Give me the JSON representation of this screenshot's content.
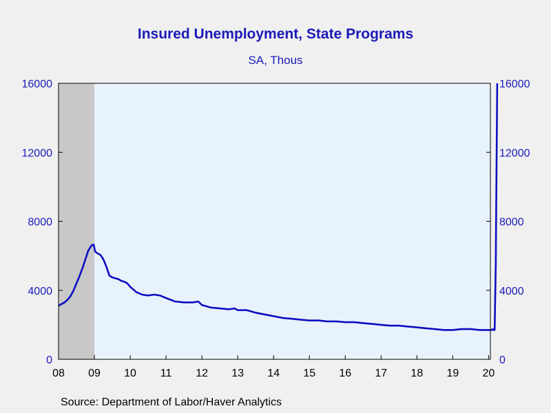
{
  "chart_data": {
    "type": "line",
    "title": "Insured Unemployment, State Programs",
    "subtitle": "SA, Thous",
    "source": "Source:  Department of Labor/Haver Analytics",
    "xlim": [
      2008.0,
      2020.05
    ],
    "ylim": [
      0,
      16000
    ],
    "x_ticks": [
      {
        "value": 2008,
        "label": "08"
      },
      {
        "value": 2009,
        "label": "09"
      },
      {
        "value": 2010,
        "label": "10"
      },
      {
        "value": 2011,
        "label": "11"
      },
      {
        "value": 2012,
        "label": "12"
      },
      {
        "value": 2013,
        "label": "13"
      },
      {
        "value": 2014,
        "label": "14"
      },
      {
        "value": 2015,
        "label": "15"
      },
      {
        "value": 2016,
        "label": "16"
      },
      {
        "value": 2017,
        "label": "17"
      },
      {
        "value": 2018,
        "label": "18"
      },
      {
        "value": 2019,
        "label": "19"
      },
      {
        "value": 2020,
        "label": "20"
      }
    ],
    "y_ticks_left": [
      {
        "value": 0,
        "label": "0"
      },
      {
        "value": 4000,
        "label": "4000"
      },
      {
        "value": 8000,
        "label": "8000"
      },
      {
        "value": 12000,
        "label": "12000"
      },
      {
        "value": 16000,
        "label": "16000"
      }
    ],
    "y_ticks_right": [
      {
        "value": 0,
        "label": "0"
      },
      {
        "value": 4000,
        "label": "4000"
      },
      {
        "value": 8000,
        "label": "8000"
      },
      {
        "value": 12000,
        "label": "12000"
      },
      {
        "value": 16000,
        "label": "16000"
      }
    ],
    "recession_shading": [
      [
        2008.0,
        2009.0
      ]
    ],
    "grid": false,
    "colors": {
      "line": "#0d0dbf",
      "axis_text": "#1a1ab8",
      "plot_bg": "#e8f2fc",
      "recession": "#c8c8c8",
      "page_bg": "#f0f0f0"
    },
    "series": [
      {
        "x": [
          2008.0,
          2008.08,
          2008.17,
          2008.25,
          2008.33,
          2008.42,
          2008.5,
          2008.58,
          2008.67,
          2008.75,
          2008.83,
          2008.92,
          2008.98,
          2009.02,
          2009.08,
          2009.17,
          2009.25,
          2009.33,
          2009.42,
          2009.5,
          2009.58,
          2009.67,
          2009.75,
          2009.83,
          2009.92,
          2010.0,
          2010.17,
          2010.33,
          2010.5,
          2010.67,
          2010.83,
          2011.0,
          2011.25,
          2011.5,
          2011.75,
          2011.9,
          2012.0,
          2012.25,
          2012.5,
          2012.75,
          2012.92,
          2013.0,
          2013.25,
          2013.5,
          2013.75,
          2014.0,
          2014.25,
          2014.5,
          2014.75,
          2015.0,
          2015.25,
          2015.5,
          2015.75,
          2016.0,
          2016.25,
          2016.5,
          2016.75,
          2017.0,
          2017.25,
          2017.5,
          2017.75,
          2018.0,
          2018.25,
          2018.5,
          2018.75,
          2019.0,
          2019.25,
          2019.5,
          2019.75,
          2020.0,
          2020.08,
          2020.12,
          2020.14,
          2020.17,
          2020.2,
          2020.24
        ],
        "values": [
          3100,
          3200,
          3300,
          3450,
          3650,
          4000,
          4400,
          4800,
          5300,
          5800,
          6300,
          6600,
          6650,
          6250,
          6150,
          6050,
          5800,
          5400,
          4850,
          4750,
          4700,
          4650,
          4550,
          4500,
          4400,
          4200,
          3900,
          3750,
          3700,
          3750,
          3700,
          3550,
          3350,
          3300,
          3300,
          3350,
          3150,
          3000,
          2950,
          2900,
          2950,
          2850,
          2850,
          2700,
          2600,
          2500,
          2400,
          2350,
          2300,
          2250,
          2250,
          2200,
          2200,
          2150,
          2150,
          2100,
          2050,
          2000,
          1950,
          1950,
          1900,
          1850,
          1800,
          1750,
          1700,
          1700,
          1750,
          1750,
          1700,
          1700,
          1700,
          1750,
          1700,
          1700,
          5500,
          16000
        ]
      }
    ]
  }
}
